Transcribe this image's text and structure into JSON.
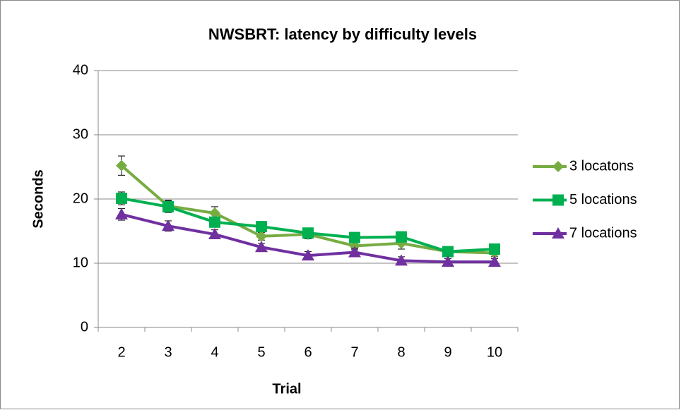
{
  "chart_data": {
    "type": "line",
    "title": "NWSBRT: latency by difficulty levels",
    "xlabel": "Trial",
    "ylabel": "Seconds",
    "categories": [
      2,
      3,
      4,
      5,
      6,
      7,
      8,
      9,
      10
    ],
    "series": [
      {
        "name": "3 locatons",
        "color": "#77ac42",
        "marker": "diamond",
        "values": [
          25.2,
          18.9,
          17.8,
          14.2,
          14.5,
          12.7,
          13.1,
          11.8,
          11.6
        ],
        "errors": [
          1.5,
          0.9,
          1.0,
          0.6,
          0.7,
          0.6,
          0.9,
          0.6,
          0.6
        ]
      },
      {
        "name": "5 locations",
        "color": "#00b050",
        "marker": "square",
        "values": [
          20.1,
          18.8,
          16.4,
          15.7,
          14.7,
          14.0,
          14.1,
          11.8,
          12.2
        ],
        "errors": [
          1.0,
          0.9,
          0.8,
          0.6,
          0.7,
          0.6,
          0.8,
          0.6,
          0.6
        ]
      },
      {
        "name": "7 locations",
        "color": "#7030a0",
        "marker": "triangle",
        "values": [
          17.6,
          15.8,
          14.5,
          12.5,
          11.2,
          11.7,
          10.4,
          10.2,
          10.2
        ],
        "errors": [
          0.9,
          0.8,
          0.7,
          0.6,
          0.6,
          0.6,
          0.6,
          0.5,
          0.5
        ]
      }
    ],
    "ylim": [
      0,
      40
    ],
    "yticks": [
      0,
      10,
      20,
      30,
      40
    ],
    "grid": true,
    "legend": "right"
  }
}
